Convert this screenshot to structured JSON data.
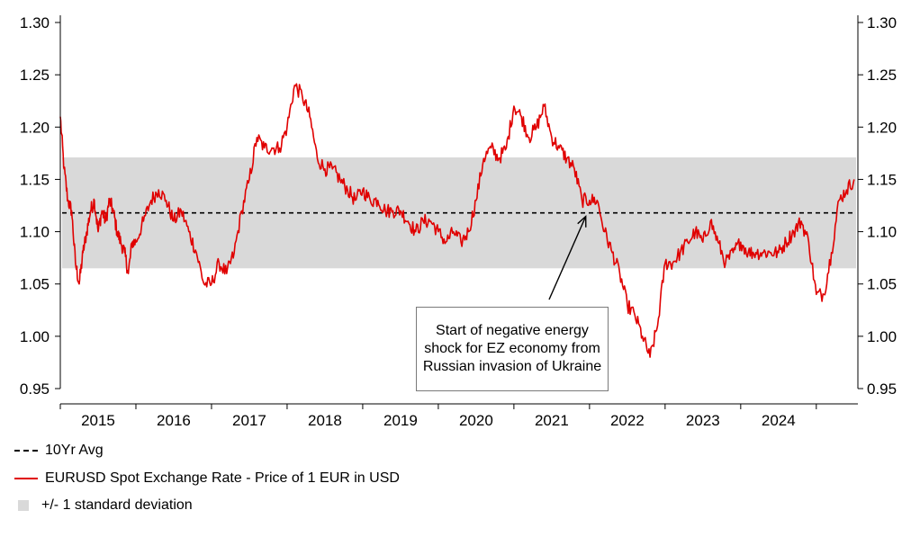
{
  "chart_data": {
    "type": "line",
    "title": "",
    "xlabel": "",
    "ylabel": "",
    "ylim": [
      0.95,
      1.3
    ],
    "y_ticks": [
      "1.30",
      "1.25",
      "1.20",
      "1.15",
      "1.10",
      "1.05",
      "1.00",
      "0.95"
    ],
    "y_tick_values": [
      1.3,
      1.25,
      1.2,
      1.15,
      1.1,
      1.05,
      1.0,
      0.95
    ],
    "x_ticks": [
      "2015",
      "2016",
      "2017",
      "2018",
      "2019",
      "2020",
      "2021",
      "2022",
      "2023",
      "2024"
    ],
    "xlim": [
      2015.0,
      2025.55
    ],
    "grid": false,
    "series": [
      {
        "name": "EURUSD Spot Exchange Rate - Price of 1 EUR in USD",
        "color": "#e00000",
        "x": [
          2015.0,
          2015.05,
          2015.1,
          2015.15,
          2015.2,
          2015.25,
          2015.3,
          2015.35,
          2015.4,
          2015.45,
          2015.5,
          2015.55,
          2015.6,
          2015.65,
          2015.7,
          2015.75,
          2015.8,
          2015.85,
          2015.9,
          2015.95,
          2016.0,
          2016.1,
          2016.2,
          2016.3,
          2016.4,
          2016.5,
          2016.6,
          2016.7,
          2016.8,
          2016.9,
          2017.0,
          2017.1,
          2017.2,
          2017.3,
          2017.4,
          2017.5,
          2017.6,
          2017.7,
          2017.8,
          2017.9,
          2018.0,
          2018.1,
          2018.2,
          2018.3,
          2018.4,
          2018.5,
          2018.6,
          2018.7,
          2018.8,
          2018.9,
          2019.0,
          2019.1,
          2019.2,
          2019.3,
          2019.4,
          2019.5,
          2019.6,
          2019.7,
          2019.8,
          2019.9,
          2020.0,
          2020.1,
          2020.2,
          2020.3,
          2020.4,
          2020.5,
          2020.6,
          2020.7,
          2020.8,
          2020.9,
          2021.0,
          2021.1,
          2021.2,
          2021.3,
          2021.4,
          2021.5,
          2021.6,
          2021.7,
          2021.8,
          2021.9,
          2022.0,
          2022.1,
          2022.2,
          2022.3,
          2022.4,
          2022.5,
          2022.6,
          2022.7,
          2022.8,
          2022.9,
          2023.0,
          2023.1,
          2023.2,
          2023.3,
          2023.4,
          2023.5,
          2023.6,
          2023.7,
          2023.8,
          2023.9,
          2024.0,
          2024.1,
          2024.2,
          2024.3,
          2024.4,
          2024.5,
          2024.6,
          2024.7,
          2024.8,
          2024.9,
          2025.0,
          2025.1,
          2025.2,
          2025.3,
          2025.4,
          2025.5
        ],
        "y": [
          1.21,
          1.16,
          1.13,
          1.12,
          1.07,
          1.05,
          1.08,
          1.1,
          1.12,
          1.13,
          1.1,
          1.12,
          1.11,
          1.13,
          1.12,
          1.1,
          1.09,
          1.08,
          1.06,
          1.09,
          1.09,
          1.11,
          1.13,
          1.14,
          1.13,
          1.11,
          1.12,
          1.1,
          1.08,
          1.05,
          1.05,
          1.07,
          1.06,
          1.08,
          1.12,
          1.15,
          1.19,
          1.18,
          1.18,
          1.18,
          1.2,
          1.24,
          1.23,
          1.21,
          1.17,
          1.16,
          1.16,
          1.15,
          1.14,
          1.13,
          1.14,
          1.13,
          1.13,
          1.12,
          1.12,
          1.12,
          1.11,
          1.1,
          1.11,
          1.11,
          1.1,
          1.09,
          1.1,
          1.09,
          1.1,
          1.13,
          1.17,
          1.18,
          1.17,
          1.18,
          1.22,
          1.21,
          1.19,
          1.2,
          1.22,
          1.19,
          1.18,
          1.17,
          1.16,
          1.13,
          1.13,
          1.13,
          1.1,
          1.08,
          1.06,
          1.03,
          1.02,
          1.0,
          0.98,
          1.01,
          1.07,
          1.07,
          1.08,
          1.09,
          1.1,
          1.09,
          1.11,
          1.09,
          1.07,
          1.08,
          1.09,
          1.08,
          1.08,
          1.08,
          1.08,
          1.08,
          1.09,
          1.1,
          1.11,
          1.09,
          1.04,
          1.04,
          1.08,
          1.13,
          1.14,
          1.15
        ]
      },
      {
        "name": "10Yr Avg",
        "color": "#000000",
        "value": 1.118
      },
      {
        "name": "+/- 1 standard deviation",
        "color": "#d9d9d9",
        "lower": 1.065,
        "upper": 1.171
      }
    ],
    "annotation": "Start of negative energy shock for EZ economy from Russian invasion of Ukraine",
    "annotation_target": {
      "x": 2021.95,
      "y": 1.118
    }
  },
  "legend": {
    "avg_label": "10Yr Avg",
    "spot_label": "EURUSD Spot Exchange Rate - Price of 1 EUR in USD",
    "band_label": "+/- 1 standard deviation"
  }
}
